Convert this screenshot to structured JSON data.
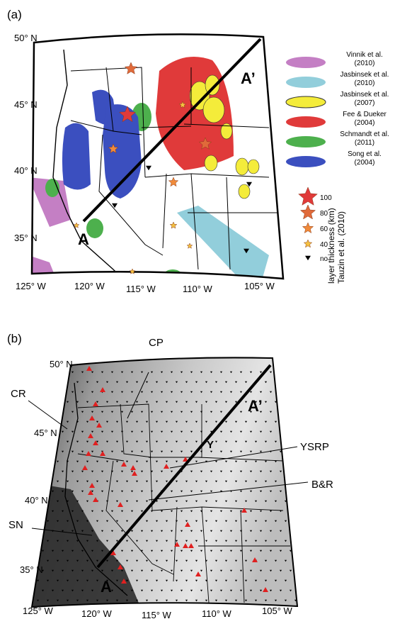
{
  "panel_a": {
    "label": "(a)",
    "lat_labels": [
      "50° N",
      "45° N",
      "40° N",
      "35° N"
    ],
    "lon_labels": [
      "125° W",
      "120° W",
      "115° W",
      "110° W",
      "105° W"
    ],
    "profile_start": "A",
    "profile_end": "A’",
    "legend": [
      "Vinnik et al. (2010)",
      "Jasbinsek et al. (2010)",
      "Jasbinsek et al. (2007)",
      "Fee & Dueker (2004)",
      "Schmandt et al. (2011)",
      "Song et al. (2004)"
    ],
    "thickness_legend": {
      "entries": [
        "100",
        "80",
        "60",
        "40",
        "no"
      ],
      "title": "layer thickness (km)",
      "source": "Tauzin et al. (2010)"
    }
  },
  "panel_b": {
    "label": "(b)",
    "lat_labels": [
      "50° N",
      "45° N",
      "40° N",
      "35° N"
    ],
    "lon_labels": [
      "125° W",
      "120° W",
      "115° W",
      "110° W",
      "105° W"
    ],
    "profile_start": "A",
    "profile_end": "A’",
    "regions": [
      "CP",
      "CR",
      "YSRP",
      "B&R",
      "SN",
      "Y"
    ]
  }
}
